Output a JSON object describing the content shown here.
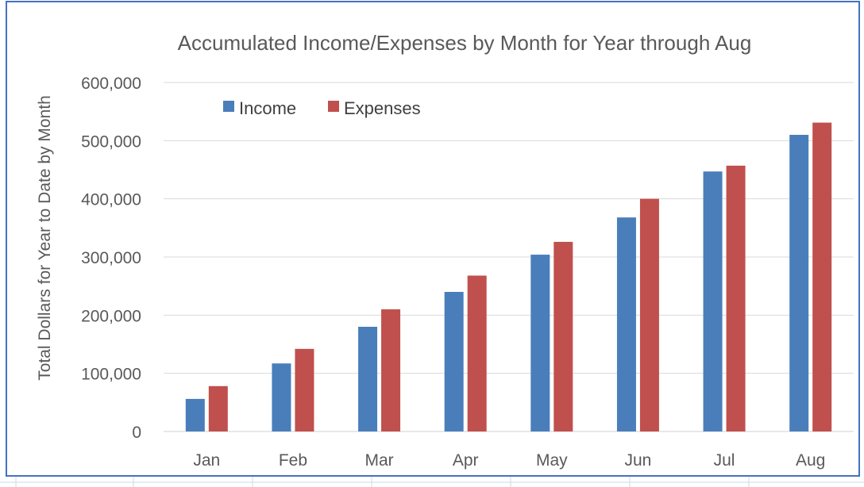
{
  "chart_data": {
    "type": "bar",
    "title": "Accumulated Income/Expenses by Month for Year through Aug",
    "xlabel": "",
    "ylabel": "Total Dollars for Year to Date by Month",
    "categories": [
      "Jan",
      "Feb",
      "Mar",
      "Apr",
      "May",
      "Jun",
      "Jul",
      "Aug"
    ],
    "series": [
      {
        "name": "Income",
        "color": "#4a7ebb",
        "values": [
          56000,
          117000,
          180000,
          240000,
          304000,
          368000,
          447000,
          510000
        ]
      },
      {
        "name": "Expenses",
        "color": "#c0504d",
        "values": [
          78000,
          142000,
          210000,
          268000,
          326000,
          400000,
          457000,
          531000
        ]
      }
    ],
    "ylim": [
      0,
      600000
    ],
    "yticks": [
      0,
      100000,
      200000,
      300000,
      400000,
      500000,
      600000
    ],
    "ytick_labels": [
      "0",
      "100,000",
      "200,000",
      "300,000",
      "400,000",
      "500,000",
      "600,000"
    ],
    "grid": true,
    "legend_position": "top-left"
  },
  "colors": {
    "border": "#4472c4",
    "gridline": "#d9d9d9",
    "text": "#595959"
  }
}
